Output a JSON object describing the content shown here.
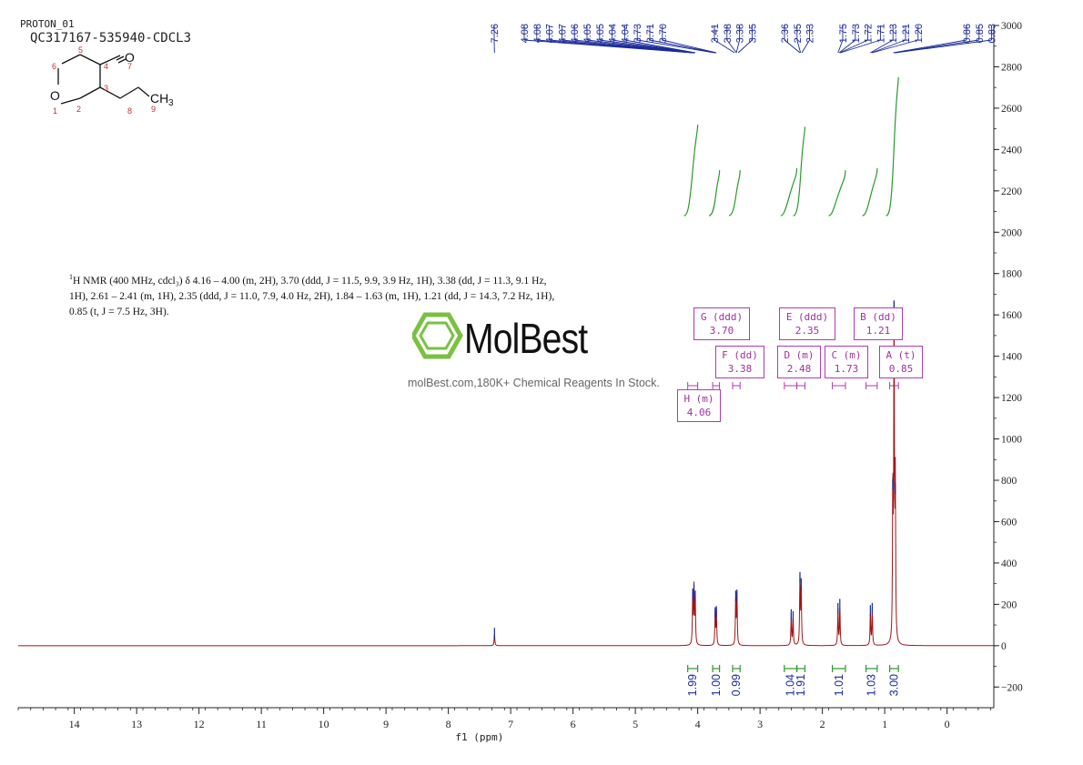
{
  "header": {
    "experiment": "PROTON_01",
    "sample": "QC317167-535940-CDCL3"
  },
  "structure": {
    "atoms": [
      "O",
      "1",
      "2",
      "3",
      "4",
      "5",
      "6",
      "7",
      "8",
      "9",
      "CH",
      "3",
      "O"
    ]
  },
  "description": {
    "nucleus": "1",
    "text": "H NMR (400 MHz, cdcl₃) δ 4.16 – 4.00 (m, 2H), 3.70 (ddd, J = 11.5, 9.9, 3.9 Hz, 1H), 3.38 (dd, J = 11.3, 9.1 Hz, 1H), 2.61 – 2.41 (m, 1H), 2.35 (ddd, J = 11.0, 7.9, 4.0 Hz, 2H), 1.84 – 1.63 (m, 1H), 1.21 (dd, J = 14.3, 7.2 Hz, 1H), 0.85 (t, J = 7.5 Hz, 3H)."
  },
  "watermark": {
    "brand": "MolBest",
    "tagline": "molBest.com,180K+ Chemical Reagents In Stock."
  },
  "colors": {
    "spectrum": "#a01515",
    "peak_marks": "#1a2a9a",
    "integral": "#2a9a2a",
    "multiplet_box": "#b03ab0",
    "logo_green": "#7ac143"
  },
  "multiplets": [
    {
      "label": "G (ddd)",
      "shift": "3.70"
    },
    {
      "label": "E (ddd)",
      "shift": "2.35"
    },
    {
      "label": "B (dd)",
      "shift": "1.21"
    },
    {
      "label": "F (dd)",
      "shift": "3.38"
    },
    {
      "label": "D (m)",
      "shift": "2.48"
    },
    {
      "label": "C (m)",
      "shift": "1.73"
    },
    {
      "label": "A (t)",
      "shift": "0.85"
    },
    {
      "label": "H (m)",
      "shift": "4.06"
    }
  ],
  "chart_data": {
    "type": "line",
    "xlabel": "f1 (ppm)",
    "xlim": [
      14.9,
      -0.75
    ],
    "ylim": [
      -300,
      3000
    ],
    "x_ticks": [
      14,
      13,
      12,
      11,
      10,
      9,
      8,
      7,
      6,
      5,
      4,
      3,
      2,
      1,
      0
    ],
    "y_ticks": [
      -200,
      0,
      200,
      400,
      600,
      800,
      1000,
      1200,
      1400,
      1600,
      1800,
      2000,
      2200,
      2400,
      2600,
      2800,
      3000
    ],
    "peak_labels": [
      "7.26",
      "4.08",
      "4.08",
      "4.07",
      "4.07",
      "4.06",
      "4.05",
      "4.05",
      "4.04",
      "4.04",
      "3.73",
      "3.71",
      "3.70",
      "3.41",
      "3.38",
      "3.38",
      "3.35",
      "2.36",
      "2.35",
      "2.33",
      "1.75",
      "1.73",
      "1.72",
      "1.71",
      "1.23",
      "1.21",
      "1.20",
      "0.86",
      "0.85",
      "0.83"
    ],
    "integrals": [
      {
        "from": 4.16,
        "to": 4.0,
        "value": "1.99"
      },
      {
        "from": 3.76,
        "to": 3.65,
        "value": "1.00"
      },
      {
        "from": 3.44,
        "to": 3.32,
        "value": "0.99"
      },
      {
        "from": 2.61,
        "to": 2.41,
        "value": "1.04"
      },
      {
        "from": 2.41,
        "to": 2.28,
        "value": "1.91"
      },
      {
        "from": 1.84,
        "to": 1.63,
        "value": "1.01"
      },
      {
        "from": 1.3,
        "to": 1.12,
        "value": "1.03"
      },
      {
        "from": 0.92,
        "to": 0.78,
        "value": "3.00"
      }
    ],
    "peaks": [
      {
        "shift": 7.26,
        "height": 60
      },
      {
        "shift": 4.08,
        "height": 250
      },
      {
        "shift": 4.06,
        "height": 270
      },
      {
        "shift": 4.04,
        "height": 240
      },
      {
        "shift": 3.72,
        "height": 160
      },
      {
        "shift": 3.7,
        "height": 165
      },
      {
        "shift": 3.39,
        "height": 240
      },
      {
        "shift": 3.37,
        "height": 245
      },
      {
        "shift": 2.5,
        "height": 150
      },
      {
        "shift": 2.47,
        "height": 140
      },
      {
        "shift": 2.36,
        "height": 330
      },
      {
        "shift": 2.34,
        "height": 300
      },
      {
        "shift": 1.75,
        "height": 180
      },
      {
        "shift": 1.72,
        "height": 200
      },
      {
        "shift": 1.23,
        "height": 170
      },
      {
        "shift": 1.2,
        "height": 180
      },
      {
        "shift": 0.87,
        "height": 780
      },
      {
        "shift": 0.85,
        "height": 1640
      },
      {
        "shift": 0.83,
        "height": 760
      }
    ]
  }
}
